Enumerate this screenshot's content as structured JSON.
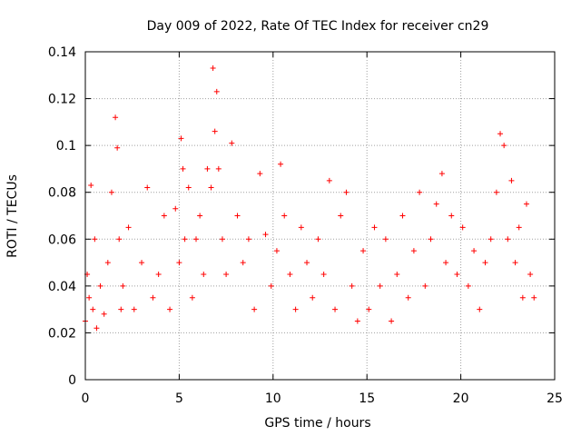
{
  "chart_data": {
    "type": "scatter",
    "title": "Day 009 of 2022, Rate Of TEC Index for receiver cn29",
    "xlabel": "GPS time / hours",
    "ylabel": "ROTI / TECUs",
    "xlim": [
      0,
      25
    ],
    "ylim": [
      0,
      0.14
    ],
    "xticks": [
      0,
      5,
      10,
      15,
      20,
      25
    ],
    "xtick_labels": [
      "0",
      "5",
      "10",
      "15",
      "20",
      "25"
    ],
    "yticks": [
      0,
      0.02,
      0.04,
      0.06,
      0.08,
      0.1,
      0.12,
      0.14
    ],
    "ytick_labels": [
      "0",
      "0.02",
      "0.04",
      "0.06",
      "0.08",
      "0.1",
      "0.12",
      "0.14"
    ],
    "grid": true,
    "marker": "+",
    "series": [
      {
        "name": "ROTI",
        "color": "#ff0000",
        "x": [
          0.0,
          0.1,
          0.2,
          0.3,
          0.4,
          0.5,
          0.6,
          0.8,
          1.0,
          1.2,
          1.4,
          1.6,
          1.7,
          1.8,
          1.9,
          2.0,
          2.3,
          2.6,
          3.0,
          3.3,
          3.6,
          3.9,
          4.2,
          4.5,
          4.8,
          5.0,
          5.1,
          5.2,
          5.3,
          5.5,
          5.7,
          5.9,
          6.1,
          6.3,
          6.5,
          6.7,
          6.8,
          6.9,
          7.0,
          7.1,
          7.3,
          7.5,
          7.8,
          8.1,
          8.4,
          8.7,
          9.0,
          9.3,
          9.6,
          9.9,
          10.2,
          10.4,
          10.6,
          10.9,
          11.2,
          11.5,
          11.8,
          12.1,
          12.4,
          12.7,
          13.0,
          13.3,
          13.6,
          13.9,
          14.2,
          14.5,
          14.8,
          15.1,
          15.4,
          15.7,
          16.0,
          16.3,
          16.6,
          16.9,
          17.2,
          17.5,
          17.8,
          18.1,
          18.4,
          18.7,
          19.0,
          19.2,
          19.5,
          19.8,
          20.1,
          20.4,
          20.7,
          21.0,
          21.3,
          21.6,
          21.9,
          22.1,
          22.3,
          22.5,
          22.7,
          22.9,
          23.1,
          23.3,
          23.5,
          23.7,
          23.9
        ],
        "values": [
          0.025,
          0.045,
          0.035,
          0.083,
          0.03,
          0.06,
          0.022,
          0.04,
          0.028,
          0.05,
          0.08,
          0.112,
          0.099,
          0.06,
          0.03,
          0.04,
          0.065,
          0.03,
          0.05,
          0.082,
          0.035,
          0.045,
          0.07,
          0.03,
          0.073,
          0.05,
          0.103,
          0.09,
          0.06,
          0.082,
          0.035,
          0.06,
          0.07,
          0.045,
          0.09,
          0.082,
          0.133,
          0.106,
          0.123,
          0.09,
          0.06,
          0.045,
          0.101,
          0.07,
          0.05,
          0.06,
          0.03,
          0.088,
          0.062,
          0.04,
          0.055,
          0.092,
          0.07,
          0.045,
          0.03,
          0.065,
          0.05,
          0.035,
          0.06,
          0.045,
          0.085,
          0.03,
          0.07,
          0.08,
          0.04,
          0.025,
          0.055,
          0.03,
          0.065,
          0.04,
          0.06,
          0.025,
          0.045,
          0.07,
          0.035,
          0.055,
          0.08,
          0.04,
          0.06,
          0.075,
          0.088,
          0.05,
          0.07,
          0.045,
          0.065,
          0.04,
          0.055,
          0.03,
          0.05,
          0.06,
          0.08,
          0.105,
          0.1,
          0.06,
          0.085,
          0.05,
          0.065,
          0.035,
          0.075,
          0.045,
          0.035
        ]
      }
    ]
  }
}
